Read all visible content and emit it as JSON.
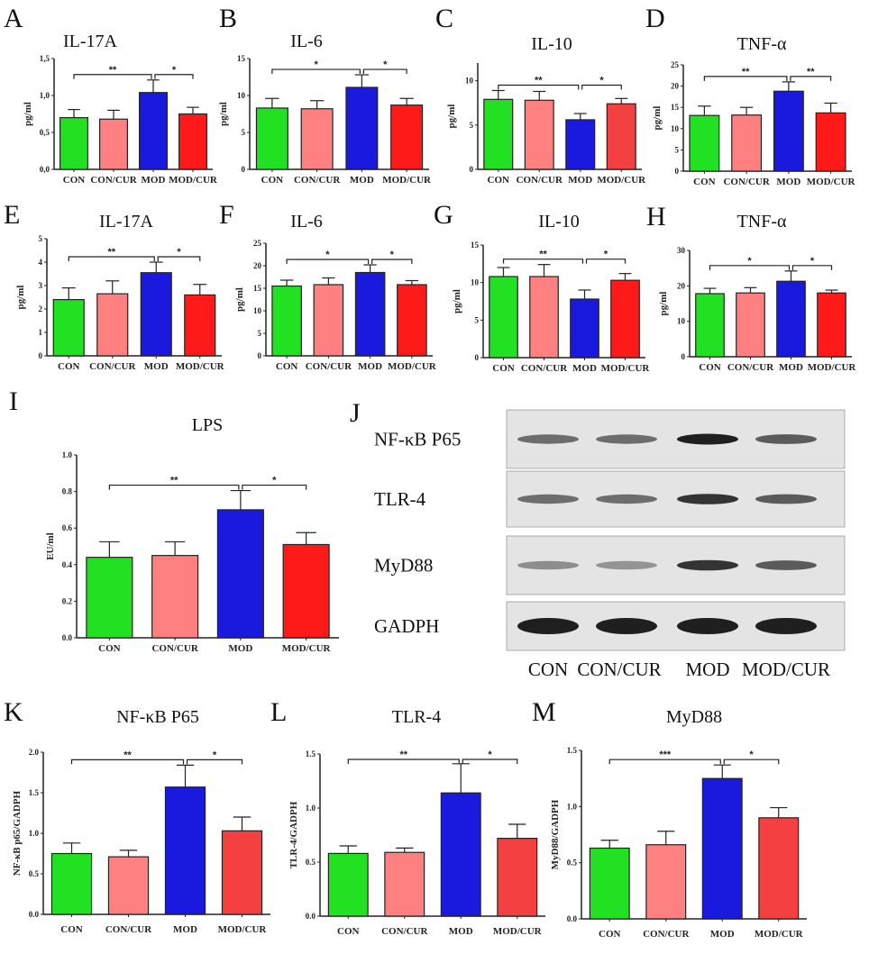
{
  "colors": {
    "CON": "#22e022",
    "CON/CUR": "#ff8080",
    "MOD": "#1a1adf",
    "MOD/CUR": "#ff1a1a",
    "MOD/CUR_alt": "#f44040"
  },
  "chart_data": [
    {
      "letter": "A",
      "type": "bar",
      "title": "IL-17A",
      "ylabel": "pg/ml",
      "categories": [
        "CON",
        "CON/CUR",
        "MOD",
        "MOD/CUR"
      ],
      "values": [
        0.7,
        0.68,
        1.04,
        0.75
      ],
      "errors": [
        0.11,
        0.12,
        0.17,
        0.09
      ],
      "ylim": [
        0,
        1.5
      ],
      "yticks": [
        "0,0",
        "0,5",
        "1,0",
        "1,5"
      ],
      "yticks_values": [
        0,
        0.5,
        1.0,
        1.5
      ],
      "significance": [
        {
          "from": "CON",
          "to": "MOD",
          "label": "**"
        },
        {
          "from": "MOD",
          "to": "MOD/CUR",
          "label": "*"
        }
      ]
    },
    {
      "letter": "B",
      "type": "bar",
      "title": "IL-6",
      "ylabel": "pg/ml",
      "categories": [
        "CON",
        "CON/CUR",
        "MOD",
        "MOD/CUR"
      ],
      "values": [
        8.3,
        8.2,
        11.1,
        8.7
      ],
      "errors": [
        1.3,
        1.1,
        1.7,
        0.9
      ],
      "ylim": [
        0,
        15
      ],
      "yticks": [
        "0",
        "5",
        "10",
        "15"
      ],
      "yticks_values": [
        0,
        5,
        10,
        15
      ],
      "significance": [
        {
          "from": "CON",
          "to": "MOD",
          "label": "*"
        },
        {
          "from": "MOD",
          "to": "MOD/CUR",
          "label": "*"
        }
      ]
    },
    {
      "letter": "C",
      "type": "bar",
      "title": "IL-10",
      "ylabel": "pg/ml",
      "categories": [
        "CON",
        "CON/CUR",
        "MOD",
        "MOD/CUR"
      ],
      "values": [
        7.9,
        7.8,
        5.6,
        7.4
      ],
      "errors": [
        1.0,
        1.0,
        0.7,
        0.6
      ],
      "ylim": [
        0,
        12
      ],
      "yticks": [
        "0",
        "5",
        "10"
      ],
      "yticks_values": [
        0,
        5,
        10
      ],
      "significance": [
        {
          "from": "CON",
          "to": "MOD",
          "label": "**"
        },
        {
          "from": "MOD",
          "to": "MOD/CUR",
          "label": "*"
        }
      ]
    },
    {
      "letter": "D",
      "type": "bar",
      "title": "TNF-α",
      "ylabel": "pg/ml",
      "categories": [
        "CON",
        "CON/CUR",
        "MOD",
        "MOD/CUR"
      ],
      "values": [
        13.1,
        13.2,
        18.8,
        13.7
      ],
      "errors": [
        2.2,
        1.8,
        2.2,
        2.3
      ],
      "ylim": [
        0,
        25
      ],
      "yticks": [
        "0",
        "5",
        "10",
        "15",
        "20",
        "25"
      ],
      "yticks_values": [
        0,
        5,
        10,
        15,
        20,
        25
      ],
      "significance": [
        {
          "from": "CON",
          "to": "MOD",
          "label": "**"
        },
        {
          "from": "MOD",
          "to": "MOD/CUR",
          "label": "**"
        }
      ]
    },
    {
      "letter": "E",
      "type": "bar",
      "title": "IL-17A",
      "ylabel": "pg/ml",
      "categories": [
        "CON",
        "CON/CUR",
        "MOD",
        "MOD/CUR"
      ],
      "values": [
        2.4,
        2.65,
        3.55,
        2.6
      ],
      "errors": [
        0.5,
        0.55,
        0.45,
        0.45
      ],
      "ylim": [
        0,
        5
      ],
      "yticks": [
        "0",
        "1",
        "2",
        "3",
        "4",
        "5"
      ],
      "yticks_values": [
        0,
        1,
        2,
        3,
        4,
        5
      ],
      "significance": [
        {
          "from": "CON",
          "to": "MOD",
          "label": "**"
        },
        {
          "from": "MOD",
          "to": "MOD/CUR",
          "label": "*"
        }
      ]
    },
    {
      "letter": "F",
      "type": "bar",
      "title": "IL-6",
      "ylabel": "pg/ml",
      "categories": [
        "CON",
        "CON/CUR",
        "MOD",
        "MOD/CUR"
      ],
      "values": [
        15.5,
        15.8,
        18.5,
        15.8
      ],
      "errors": [
        1.3,
        1.5,
        1.7,
        0.9
      ],
      "ylim": [
        0,
        25
      ],
      "yticks": [
        "0",
        "5",
        "10",
        "15",
        "20",
        "25"
      ],
      "yticks_values": [
        0,
        5,
        10,
        15,
        20,
        25
      ],
      "significance": [
        {
          "from": "CON",
          "to": "MOD",
          "label": "*"
        },
        {
          "from": "MOD",
          "to": "MOD/CUR",
          "label": "*"
        }
      ]
    },
    {
      "letter": "G",
      "type": "bar",
      "title": "IL-10",
      "ylabel": "pg/ml",
      "categories": [
        "CON",
        "CON/CUR",
        "MOD",
        "MOD/CUR"
      ],
      "values": [
        10.8,
        10.8,
        7.8,
        10.3
      ],
      "errors": [
        1.2,
        1.6,
        1.2,
        0.9
      ],
      "ylim": [
        0,
        15
      ],
      "yticks": [
        "0",
        "5",
        "10",
        "15"
      ],
      "yticks_values": [
        0,
        5,
        10,
        15
      ],
      "significance": [
        {
          "from": "CON",
          "to": "MOD",
          "label": "**"
        },
        {
          "from": "MOD",
          "to": "MOD/CUR",
          "label": "*"
        }
      ]
    },
    {
      "letter": "H",
      "type": "bar",
      "title": "TNF-α",
      "ylabel": "pg/ml",
      "categories": [
        "CON",
        "CON/CUR",
        "MOD",
        "MOD/CUR"
      ],
      "values": [
        17.8,
        18.0,
        21.3,
        18.0
      ],
      "errors": [
        1.5,
        1.5,
        2.9,
        0.8
      ],
      "ylim": [
        0,
        30
      ],
      "yticks": [
        "0",
        "10",
        "20",
        "30"
      ],
      "yticks_values": [
        0,
        10,
        20,
        30
      ],
      "significance": [
        {
          "from": "CON",
          "to": "MOD",
          "label": "*"
        },
        {
          "from": "MOD",
          "to": "MOD/CUR",
          "label": "*"
        }
      ]
    },
    {
      "letter": "I",
      "type": "bar",
      "title": "LPS",
      "ylabel": "EU/ml",
      "categories": [
        "CON",
        "CON/CUR",
        "MOD",
        "MOD/CUR"
      ],
      "values": [
        0.44,
        0.45,
        0.7,
        0.51
      ],
      "errors": [
        0.085,
        0.075,
        0.105,
        0.065
      ],
      "ylim": [
        0,
        1.0
      ],
      "yticks": [
        "0.0",
        "0.2",
        "0.4",
        "0.6",
        "0.8",
        "1.0"
      ],
      "yticks_values": [
        0,
        0.2,
        0.4,
        0.6,
        0.8,
        1.0
      ],
      "significance": [
        {
          "from": "CON",
          "to": "MOD",
          "label": "**"
        },
        {
          "from": "MOD",
          "to": "MOD/CUR",
          "label": "*"
        }
      ]
    },
    {
      "letter": "K",
      "type": "bar",
      "title": "NF-κB P65",
      "ylabel": "NF-κB p65/GADPH",
      "categories": [
        "CON",
        "CON/CUR",
        "MOD",
        "MOD/CUR"
      ],
      "values": [
        0.75,
        0.71,
        1.57,
        1.03
      ],
      "errors": [
        0.13,
        0.08,
        0.27,
        0.17
      ],
      "ylim": [
        0,
        2.0
      ],
      "yticks": [
        "0.0",
        "0.5",
        "1.0",
        "1.5",
        "2.0"
      ],
      "yticks_values": [
        0,
        0.5,
        1.0,
        1.5,
        2.0
      ],
      "significance": [
        {
          "from": "CON",
          "to": "MOD",
          "label": "**"
        },
        {
          "from": "MOD",
          "to": "MOD/CUR",
          "label": "*"
        }
      ]
    },
    {
      "letter": "L",
      "type": "bar",
      "title": "TLR-4",
      "ylabel": "TLR-4/GADPH",
      "categories": [
        "CON",
        "CON/CUR",
        "MOD",
        "MOD/CUR"
      ],
      "values": [
        0.58,
        0.59,
        1.14,
        0.72
      ],
      "errors": [
        0.07,
        0.04,
        0.27,
        0.13
      ],
      "ylim": [
        0,
        1.5
      ],
      "yticks": [
        "0.0",
        "0.5",
        "1.0",
        "1.5"
      ],
      "yticks_values": [
        0,
        0.5,
        1.0,
        1.5
      ],
      "significance": [
        {
          "from": "CON",
          "to": "MOD",
          "label": "**"
        },
        {
          "from": "MOD",
          "to": "MOD/CUR",
          "label": "*"
        }
      ]
    },
    {
      "letter": "M",
      "type": "bar",
      "title": "MyD88",
      "ylabel": "MyD88/GADPH",
      "categories": [
        "CON",
        "CON/CUR",
        "MOD",
        "MOD/CUR"
      ],
      "values": [
        0.63,
        0.66,
        1.25,
        0.9
      ],
      "errors": [
        0.07,
        0.12,
        0.12,
        0.09
      ],
      "ylim": [
        0,
        1.5
      ],
      "yticks": [
        "0.0",
        "0.5",
        "1.0",
        "1.5"
      ],
      "yticks_values": [
        0,
        0.5,
        1.0,
        1.5
      ],
      "significance": [
        {
          "from": "CON",
          "to": "MOD",
          "label": "***"
        },
        {
          "from": "MOD",
          "to": "MOD/CUR",
          "label": "*"
        }
      ]
    }
  ],
  "blot": {
    "letter": "J",
    "rows": [
      {
        "label": "NF-κB P65",
        "band_intensity": [
          0.6,
          0.6,
          1.0,
          0.7
        ]
      },
      {
        "label": "TLR-4",
        "band_intensity": [
          0.6,
          0.6,
          0.9,
          0.7
        ]
      },
      {
        "label": "MyD88",
        "band_intensity": [
          0.4,
          0.35,
          0.9,
          0.7
        ]
      },
      {
        "label": "GADPH",
        "band_intensity": [
          1.0,
          1.0,
          1.0,
          1.0
        ]
      }
    ],
    "lanes": [
      "CON",
      "CON/CUR",
      "MOD",
      "MOD/CUR"
    ]
  }
}
